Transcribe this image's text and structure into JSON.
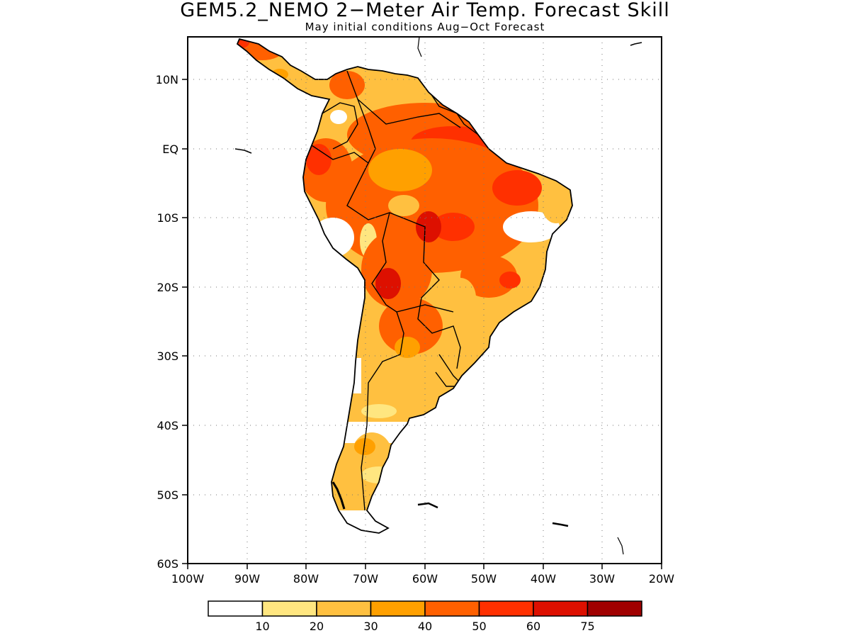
{
  "title": "GEM5.2_NEMO 2−Meter Air Temp. Forecast Skill",
  "subtitle": "May initial conditions   Aug−Oct Forecast",
  "map": {
    "lon_range": [
      -100,
      -20
    ],
    "lat_range": [
      -60,
      15
    ],
    "lon_ticks": [
      "100W",
      "90W",
      "80W",
      "70W",
      "60W",
      "50W",
      "40W",
      "30W",
      "20W"
    ],
    "lat_ticks": [
      "10N",
      "EQ",
      "10S",
      "20S",
      "30S",
      "40S",
      "50S",
      "60S"
    ],
    "grid": "dotted"
  },
  "colorbar": {
    "colors": [
      "#ffffff",
      "#ffe680",
      "#ffc040",
      "#ffa000",
      "#ff6000",
      "#ff3000",
      "#dd1000",
      "#a00000"
    ],
    "labels": [
      "10",
      "20",
      "30",
      "40",
      "50",
      "60",
      "75"
    ]
  }
}
